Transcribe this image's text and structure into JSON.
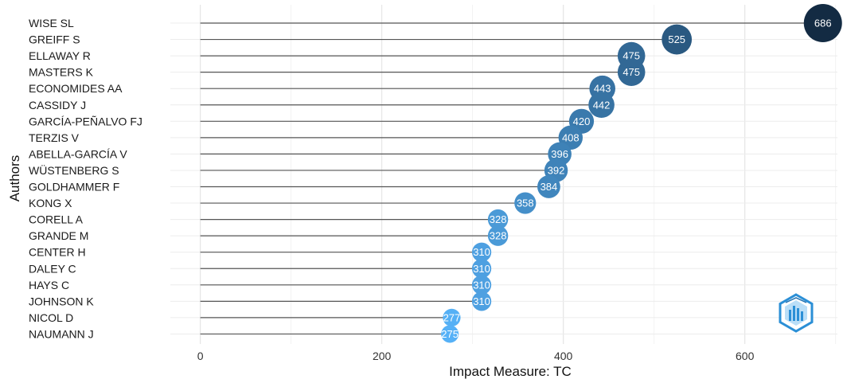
{
  "chart_data": {
    "type": "lollipop",
    "xlabel": "Impact Measure: TC",
    "ylabel": "Authors",
    "xlim": [
      -33,
      702
    ],
    "xticks": [
      0,
      200,
      400,
      600
    ],
    "grid": true,
    "categories": [
      "WISE SL",
      "GREIFF S",
      "ELLAWAY R",
      "MASTERS K",
      "ECONOMIDES AA",
      "CASSIDY J",
      "GARCÍA-PEÑALVO FJ",
      "TERZIS V",
      "ABELLA-GARCÍA V",
      "WÜSTENBERG S",
      "GOLDHAMMER F",
      "KONG X",
      "CORELL A",
      "GRANDE M",
      "CENTER H",
      "DALEY C",
      "HAYS C",
      "JOHNSON K",
      "NICOL D",
      "NAUMANN J"
    ],
    "values": [
      686,
      525,
      475,
      475,
      443,
      442,
      420,
      408,
      396,
      392,
      384,
      358,
      328,
      328,
      310,
      310,
      310,
      310,
      277,
      275
    ],
    "color_low": "#56B1F7",
    "color_high": "#132B43",
    "line_color": "#555555"
  },
  "logo": {
    "name": "bibliometrix-logo-icon"
  }
}
